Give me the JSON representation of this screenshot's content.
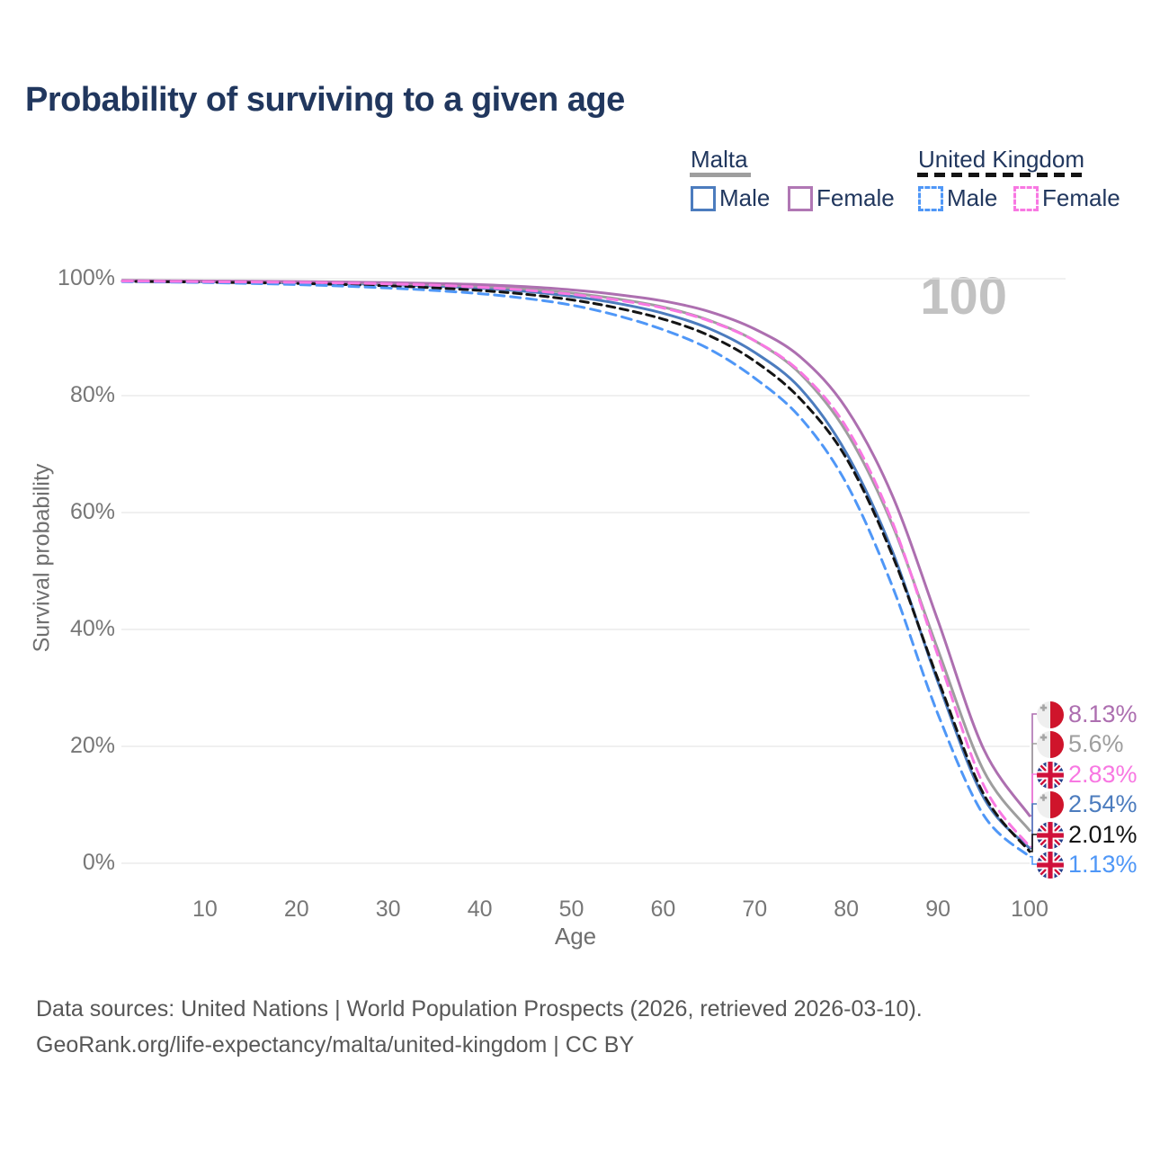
{
  "page": {
    "title": "Probability of surviving to a given age",
    "watermark": "100"
  },
  "legend": {
    "groups": [
      {
        "country": "Malta",
        "line_style": "solid",
        "line_color": "#9e9e9e",
        "items": [
          {
            "label": "Male",
            "color": "#4c7cbe",
            "line_style": "solid"
          },
          {
            "label": "Female",
            "color": "#b077b4",
            "line_style": "solid"
          }
        ]
      },
      {
        "country": "United Kingdom",
        "line_style": "dashed",
        "line_color": "#141414",
        "items": [
          {
            "label": "Male",
            "color": "#4f97f7",
            "line_style": "dashed"
          },
          {
            "label": "Female",
            "color": "#f878e2",
            "line_style": "dashed"
          }
        ]
      }
    ]
  },
  "footer": {
    "line1": "Data sources: United Nations | World Population Prospects (2026, retrieved 2026-03-10).",
    "line2": "GeoRank.org/life-expectancy/malta/united-kingdom | CC BY"
  },
  "chart_data": {
    "type": "line",
    "title": "Probability of surviving to a given age",
    "xlabel": "Age",
    "ylabel": "Survival probability",
    "xlim": [
      0,
      100
    ],
    "ylim": [
      0,
      100
    ],
    "grid": "horizontal",
    "legend_position": "top-right",
    "watermark": "100",
    "x_ticks": [
      10,
      20,
      30,
      40,
      50,
      60,
      70,
      80,
      90,
      100
    ],
    "y_ticks": [
      {
        "value": 100,
        "label": "100%"
      },
      {
        "value": 80,
        "label": "80%"
      },
      {
        "value": 60,
        "label": "60%"
      },
      {
        "value": 40,
        "label": "40%"
      },
      {
        "value": 20,
        "label": "20%"
      },
      {
        "value": 0,
        "label": "0%"
      }
    ],
    "ages": [
      1,
      5,
      10,
      15,
      20,
      25,
      30,
      35,
      40,
      45,
      50,
      55,
      60,
      65,
      70,
      75,
      80,
      85,
      90,
      95,
      100
    ],
    "series": [
      {
        "id": "malta-male",
        "name": "Malta Male",
        "country": "Malta",
        "flag": "malta",
        "color": "#4c7cbe",
        "line_style": "solid",
        "end_label": "2.54%",
        "values": [
          99.6,
          99.55,
          99.48,
          99.4,
          99.3,
          99.18,
          99.0,
          98.75,
          98.4,
          97.85,
          97.0,
          95.8,
          94.1,
          91.5,
          87.4,
          81.2,
          70.2,
          53.5,
          31.0,
          11.2,
          2.54
        ]
      },
      {
        "id": "malta-all",
        "name": "Malta",
        "country": "Malta",
        "flag": "malta",
        "color": "#9e9e9e",
        "line_style": "solid",
        "end_label": "5.6%",
        "values": [
          99.65,
          99.6,
          99.55,
          99.48,
          99.42,
          99.32,
          99.2,
          99.0,
          98.7,
          98.25,
          97.55,
          96.55,
          95.15,
          92.9,
          89.4,
          83.7,
          73.8,
          58.0,
          36.5,
          15.8,
          5.6
        ]
      },
      {
        "id": "malta-female",
        "name": "Malta Female",
        "country": "Malta",
        "flag": "malta",
        "color": "#ad6fb0",
        "line_style": "solid",
        "end_label": "8.13%",
        "values": [
          99.7,
          99.66,
          99.62,
          99.57,
          99.52,
          99.45,
          99.35,
          99.2,
          99.0,
          98.65,
          98.1,
          97.3,
          96.2,
          94.4,
          91.4,
          86.6,
          77.8,
          63.0,
          41.5,
          19.5,
          8.13
        ]
      },
      {
        "id": "uk-all",
        "name": "United Kingdom",
        "country": "United Kingdom",
        "flag": "uk",
        "color": "#141414",
        "line_style": "dashed",
        "dash": "9 6",
        "end_label": "2.01%",
        "values": [
          99.55,
          99.5,
          99.42,
          99.32,
          99.2,
          99.02,
          98.78,
          98.45,
          98.0,
          97.35,
          96.4,
          95.0,
          93.1,
          90.3,
          85.9,
          79.4,
          69.3,
          52.8,
          31.5,
          11.8,
          2.01
        ]
      },
      {
        "id": "uk-male",
        "name": "United Kingdom Male",
        "country": "United Kingdom",
        "flag": "uk",
        "color": "#4f97f7",
        "line_style": "dashed",
        "dash": "11 7",
        "end_label": "1.13%",
        "values": [
          99.5,
          99.44,
          99.35,
          99.2,
          99.0,
          98.75,
          98.42,
          98.0,
          97.45,
          96.65,
          95.5,
          93.7,
          91.3,
          88.0,
          83.0,
          76.2,
          65.0,
          47.5,
          25.5,
          8.2,
          1.13
        ]
      },
      {
        "id": "uk-female",
        "name": "United Kingdom Female",
        "country": "United Kingdom",
        "flag": "uk",
        "color": "#f878e2",
        "line_style": "dashed",
        "dash": "11 7",
        "end_label": "2.83%",
        "values": [
          99.6,
          99.56,
          99.5,
          99.44,
          99.38,
          99.28,
          99.12,
          98.9,
          98.55,
          98.05,
          97.35,
          96.35,
          95.0,
          92.8,
          89.4,
          84.0,
          74.6,
          58.5,
          35.5,
          13.3,
          2.83
        ]
      }
    ]
  }
}
